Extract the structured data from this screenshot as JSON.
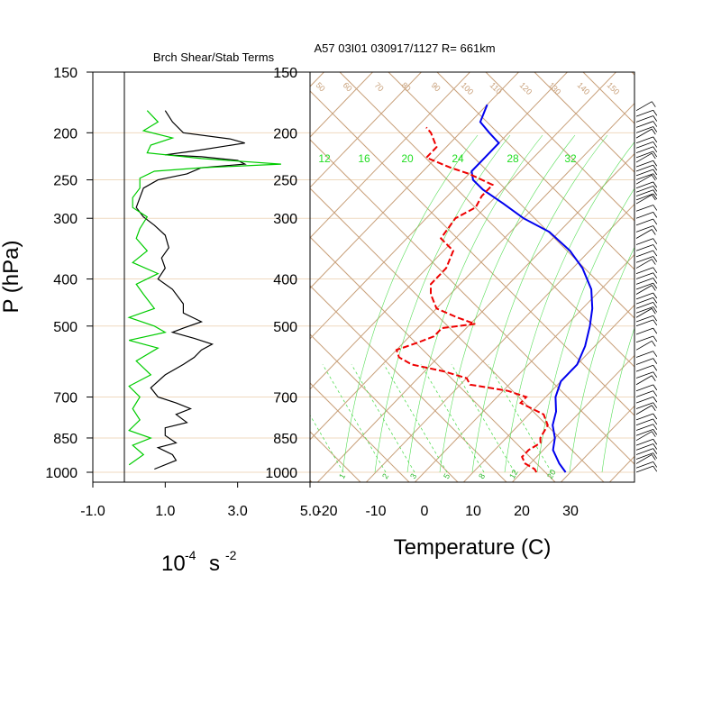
{
  "header": {
    "left_title": "Brch Shear/Stab Terms",
    "right_title": "A57 03I01 030917/1127 R= 661km"
  },
  "colors": {
    "isobar": "#efd9bf",
    "adiabat": "#c8a07a",
    "mixing": "#55dd55",
    "temperature": "#0000ee",
    "dewpoint": "#ee0000",
    "shear": "#000000",
    "stability": "#00cc00",
    "wind": "#000000"
  },
  "chart_data": [
    {
      "type": "line",
      "panel": "left",
      "title": "Brch Shear/Stab Terms",
      "ylabel": "P (hPa)",
      "xlabel_base": "10",
      "xlabel_exp": "-4",
      "xlabel_unit": "s",
      "xlabel_unit_exp": "-2",
      "y_ticks": [
        "150",
        "200",
        "250",
        "300",
        "400",
        "500",
        "700",
        "850",
        "1000"
      ],
      "x_ticks": [
        "-1.0",
        "1.0",
        "3.0",
        "5.0"
      ],
      "xlim": [
        -1.0,
        5.0
      ],
      "ylim": [
        1000,
        150
      ],
      "log_y": true,
      "series": [
        {
          "color": "black",
          "points": [
            [
              1.0,
              180
            ],
            [
              1.2,
              190
            ],
            [
              1.5,
              200
            ],
            [
              2.8,
              206
            ],
            [
              3.2,
              210
            ],
            [
              1.8,
              218
            ],
            [
              1.0,
              222
            ],
            [
              2.0,
              224
            ],
            [
              3.0,
              228
            ],
            [
              3.2,
              232
            ],
            [
              2.0,
              236
            ],
            [
              1.6,
              243
            ],
            [
              0.8,
              250
            ],
            [
              0.4,
              260
            ],
            [
              0.3,
              272
            ],
            [
              0.2,
              285
            ],
            [
              0.4,
              298
            ],
            [
              0.7,
              310
            ],
            [
              1.0,
              325
            ],
            [
              1.1,
              345
            ],
            [
              0.9,
              362
            ],
            [
              1.0,
              380
            ],
            [
              0.8,
              400
            ],
            [
              1.2,
              420
            ],
            [
              1.5,
              450
            ],
            [
              1.5,
              470
            ],
            [
              2.0,
              490
            ],
            [
              1.5,
              505
            ],
            [
              1.2,
              515
            ],
            [
              1.8,
              530
            ],
            [
              2.3,
              545
            ],
            [
              2.0,
              560
            ],
            [
              1.8,
              580
            ],
            [
              1.5,
              600
            ],
            [
              1.0,
              630
            ],
            [
              0.6,
              670
            ],
            [
              0.8,
              700
            ],
            [
              1.3,
              720
            ],
            [
              1.7,
              740
            ],
            [
              1.3,
              760
            ],
            [
              1.6,
              790
            ],
            [
              1.0,
              810
            ],
            [
              1.0,
              840
            ],
            [
              1.3,
              870
            ],
            [
              0.8,
              890
            ],
            [
              1.2,
              920
            ],
            [
              1.3,
              945
            ],
            [
              0.7,
              985
            ]
          ]
        },
        {
          "color": "green",
          "points": [
            [
              0.5,
              180
            ],
            [
              0.8,
              190
            ],
            [
              0.4,
              198
            ],
            [
              1.2,
              205
            ],
            [
              0.6,
              212
            ],
            [
              0.5,
              220
            ],
            [
              2.0,
              226
            ],
            [
              4.2,
              232
            ],
            [
              2.0,
              236
            ],
            [
              0.7,
              240
            ],
            [
              0.3,
              248
            ],
            [
              0.3,
              260
            ],
            [
              0.1,
              272
            ],
            [
              0.1,
              285
            ],
            [
              0.5,
              298
            ],
            [
              0.3,
              315
            ],
            [
              0.2,
              330
            ],
            [
              0.5,
              350
            ],
            [
              0.1,
              370
            ],
            [
              0.8,
              390
            ],
            [
              0.2,
              410
            ],
            [
              0.4,
              430
            ],
            [
              0.7,
              460
            ],
            [
              0.0,
              480
            ],
            [
              0.7,
              500
            ],
            [
              1.0,
              515
            ],
            [
              0.0,
              535
            ],
            [
              0.8,
              555
            ],
            [
              0.2,
              590
            ],
            [
              0.6,
              630
            ],
            [
              0.0,
              665
            ],
            [
              0.3,
              700
            ],
            [
              0.1,
              740
            ],
            [
              0.3,
              780
            ],
            [
              0.0,
              820
            ],
            [
              0.6,
              850
            ],
            [
              0.1,
              880
            ],
            [
              0.4,
              920
            ],
            [
              0.0,
              965
            ]
          ]
        }
      ]
    },
    {
      "type": "line",
      "panel": "right",
      "title": "A57 03I01 030917/1127 R= 661km",
      "xlabel": "Temperature (C)",
      "y_ticks": [
        "150",
        "200",
        "250",
        "300",
        "400",
        "500",
        "700",
        "850",
        "1000"
      ],
      "x_ticks": [
        "-20",
        "-10",
        "0",
        "10",
        "20",
        "30"
      ],
      "xlim": [
        -23,
        45
      ],
      "ylim": [
        1000,
        150
      ],
      "log_y": true,
      "skew": 45,
      "dry_adiabat_labels": [
        "50",
        "60",
        "70",
        "80",
        "90",
        "100",
        "110",
        "120",
        "130",
        "140",
        "150"
      ],
      "mixing_ratio_top_labels": [
        "12",
        "16",
        "20",
        "24",
        "28",
        "32"
      ],
      "mixing_ratio_bottom_labels": [
        "1",
        "2",
        "3",
        "5",
        "8",
        "12",
        "20"
      ],
      "series": [
        {
          "name_hidden": "temperature",
          "color": "blue",
          "points": [
            [
              29,
              1000
            ],
            [
              26,
              960
            ],
            [
              22,
              900
            ],
            [
              20,
              850
            ],
            [
              17,
              800
            ],
            [
              15,
              750
            ],
            [
              12,
              700
            ],
            [
              10,
              650
            ],
            [
              10,
              600
            ],
            [
              8,
              550
            ],
            [
              5,
              500
            ],
            [
              2,
              460
            ],
            [
              -2,
              420
            ],
            [
              -8,
              380
            ],
            [
              -14,
              350
            ],
            [
              -22,
              320
            ],
            [
              -30,
              300
            ],
            [
              -37,
              280
            ],
            [
              -44,
              262
            ],
            [
              -48,
              250
            ],
            [
              -50,
              240
            ],
            [
              -50,
              225
            ],
            [
              -50,
              210
            ],
            [
              -54,
              200
            ],
            [
              -58,
              190
            ],
            [
              -60,
              175
            ]
          ]
        },
        {
          "name_hidden": "dewpoint",
          "color": "red",
          "points": [
            [
              23,
              1000
            ],
            [
              22,
              985
            ],
            [
              19,
              960
            ],
            [
              17,
              930
            ],
            [
              17,
              900
            ],
            [
              18,
              870
            ],
            [
              17,
              850
            ],
            [
              16,
              800
            ],
            [
              13,
              760
            ],
            [
              6,
              720
            ],
            [
              6,
              700
            ],
            [
              1,
              680
            ],
            [
              -8,
              660
            ],
            [
              -10,
              640
            ],
            [
              -16,
              620
            ],
            [
              -24,
              600
            ],
            [
              -28,
              580
            ],
            [
              -30,
              560
            ],
            [
              -27,
              540
            ],
            [
              -25,
              525
            ],
            [
              -25,
              505
            ],
            [
              -19,
              495
            ],
            [
              -24,
              480
            ],
            [
              -30,
              460
            ],
            [
              -34,
              430
            ],
            [
              -36,
              410
            ],
            [
              -36,
              380
            ],
            [
              -38,
              350
            ],
            [
              -43,
              330
            ],
            [
              -44,
              300
            ],
            [
              -42,
              285
            ],
            [
              -43,
              270
            ],
            [
              -43,
              256
            ],
            [
              -50,
              243
            ],
            [
              -55,
              236
            ],
            [
              -62,
              225
            ],
            [
              -62,
              214
            ],
            [
              -66,
              200
            ],
            [
              -68,
              195
            ]
          ]
        }
      ]
    }
  ],
  "wind_barbs": {
    "description_hidden": "wind barbs at right edge",
    "pressures": [
      180,
      185,
      190,
      195,
      200,
      205,
      210,
      215,
      220,
      225,
      230,
      235,
      240,
      245,
      250,
      255,
      260,
      265,
      270,
      275,
      280,
      290,
      300,
      310,
      320,
      330,
      340,
      350,
      360,
      370,
      380,
      390,
      400,
      410,
      420,
      430,
      440,
      450,
      460,
      470,
      480,
      490,
      500,
      520,
      540,
      560,
      580,
      600,
      620,
      640,
      660,
      680,
      700,
      720,
      740,
      760,
      780,
      800,
      820,
      840,
      860,
      880,
      900,
      920,
      940,
      960,
      980,
      1000
    ]
  }
}
